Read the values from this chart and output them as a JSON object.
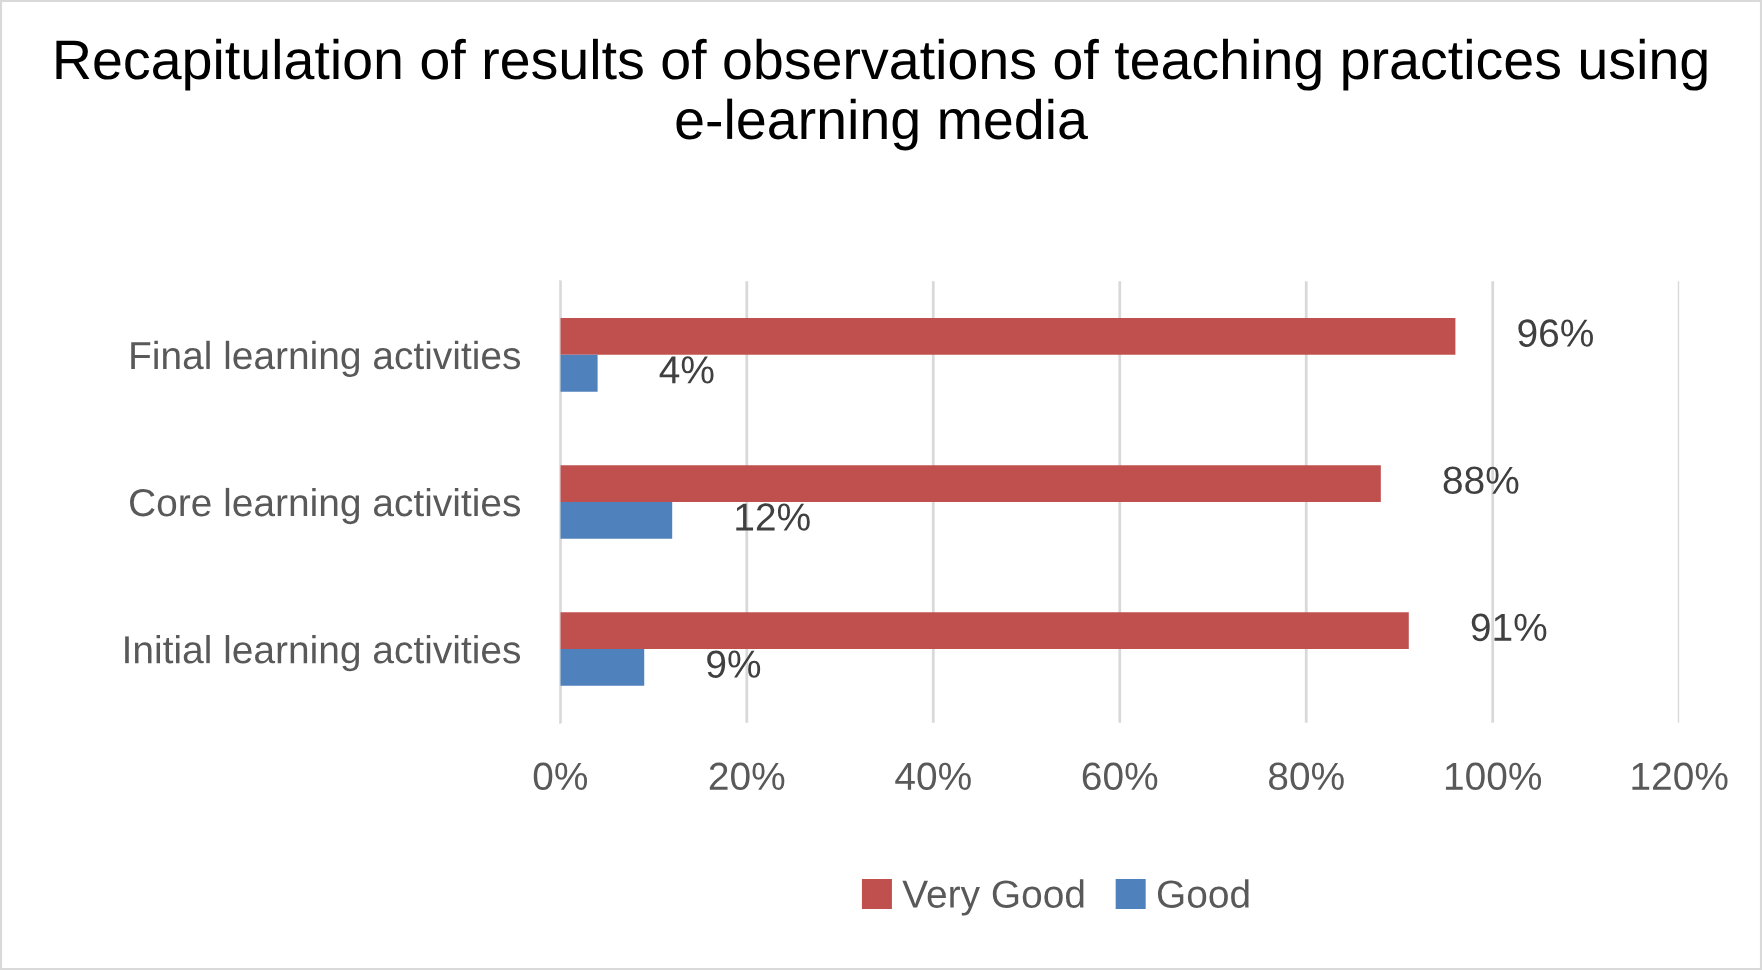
{
  "chart_data": {
    "type": "bar",
    "orientation": "horizontal",
    "title": "Recapitulation of results of observations of teaching practices using e-learning media",
    "categories": [
      "Final learning activities",
      "Core learning activities",
      "Initial learning activities"
    ],
    "series": [
      {
        "name": "Very Good",
        "color": "#c0504d",
        "values": [
          96,
          88,
          91
        ],
        "value_labels": [
          "96%",
          "88%",
          "91%"
        ]
      },
      {
        "name": "Good",
        "color": "#4f81bd",
        "values": [
          4,
          12,
          9
        ],
        "value_labels": [
          "4%",
          "12%",
          "9%"
        ]
      }
    ],
    "xlim": [
      0,
      120
    ],
    "xticks": [
      {
        "value": 0,
        "label": "0%"
      },
      {
        "value": 20,
        "label": "20%"
      },
      {
        "value": 40,
        "label": "40%"
      },
      {
        "value": 60,
        "label": "60%"
      },
      {
        "value": 80,
        "label": "80%"
      },
      {
        "value": 100,
        "label": "100%"
      },
      {
        "value": 120,
        "label": "120%"
      }
    ],
    "grid": "x",
    "legend": "bottom"
  }
}
